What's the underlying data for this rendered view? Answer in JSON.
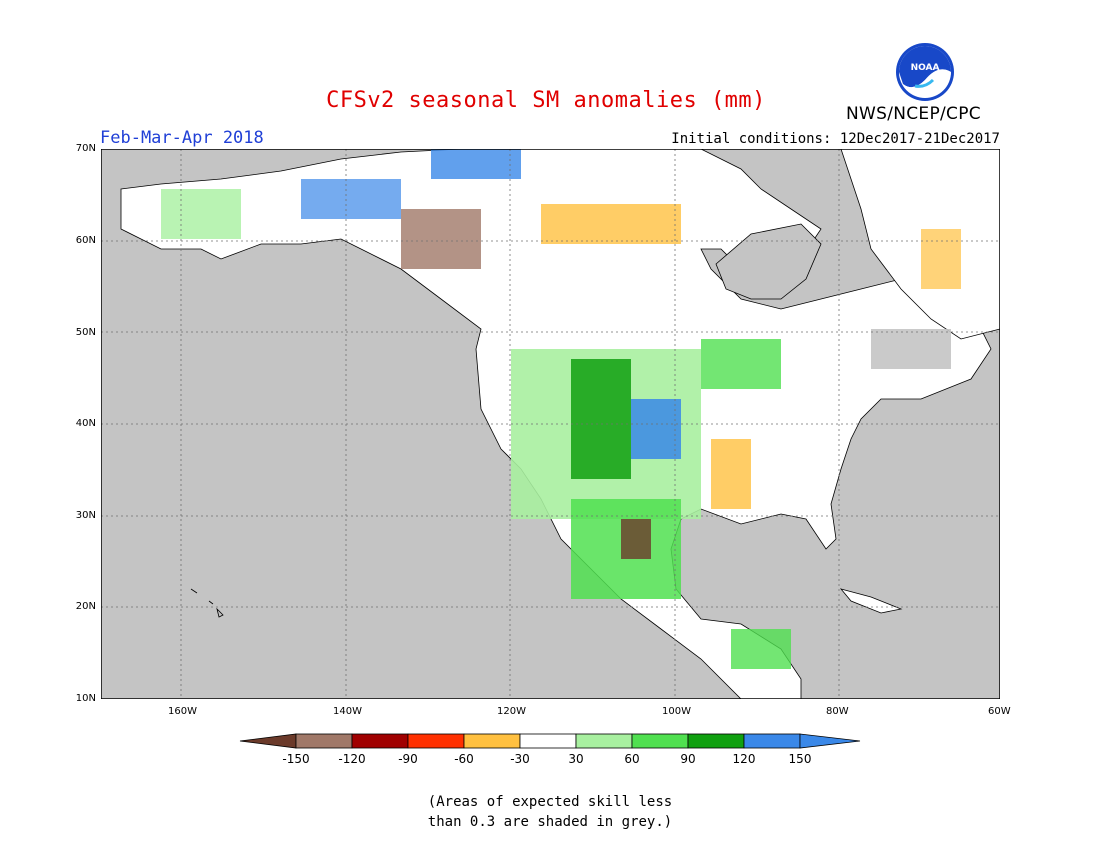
{
  "title": "CFSv2 seasonal SM anomalies (mm)",
  "period": "Feb-Mar-Apr 2018",
  "initial_conditions": "Initial conditions: 12Dec2017-21Dec2017",
  "agency": "NWS/NCEP/CPC",
  "logo_text": "NOAA",
  "note_line1": "(Areas of expected skill less",
  "note_line2": "than 0.3 are shaded in grey.)",
  "map": {
    "lon_range": [
      -172,
      -60
    ],
    "lat_range": [
      10,
      70
    ],
    "lat_labels": [
      "70N",
      "60N",
      "50N",
      "40N",
      "30N",
      "20N",
      "10N"
    ],
    "lon_labels": [
      "160W",
      "140W",
      "120W",
      "100W",
      "80W",
      "60W"
    ],
    "colors": {
      "ocean": "#c4c4c4",
      "land_neutral": "#ffffff",
      "low_skill": "#c4c4c4"
    }
  },
  "legend": {
    "ticks": [
      "-150",
      "-120",
      "-90",
      "-60",
      "-30",
      "30",
      "60",
      "90",
      "120",
      "150"
    ],
    "colors": [
      "#6b3a2a",
      "#a07868",
      "#a00000",
      "#ff3000",
      "#ffc040",
      "#ffffff",
      "#a8f0a0",
      "#50e050",
      "#10a010",
      "#3a88e8",
      "#3a88e8"
    ]
  }
}
